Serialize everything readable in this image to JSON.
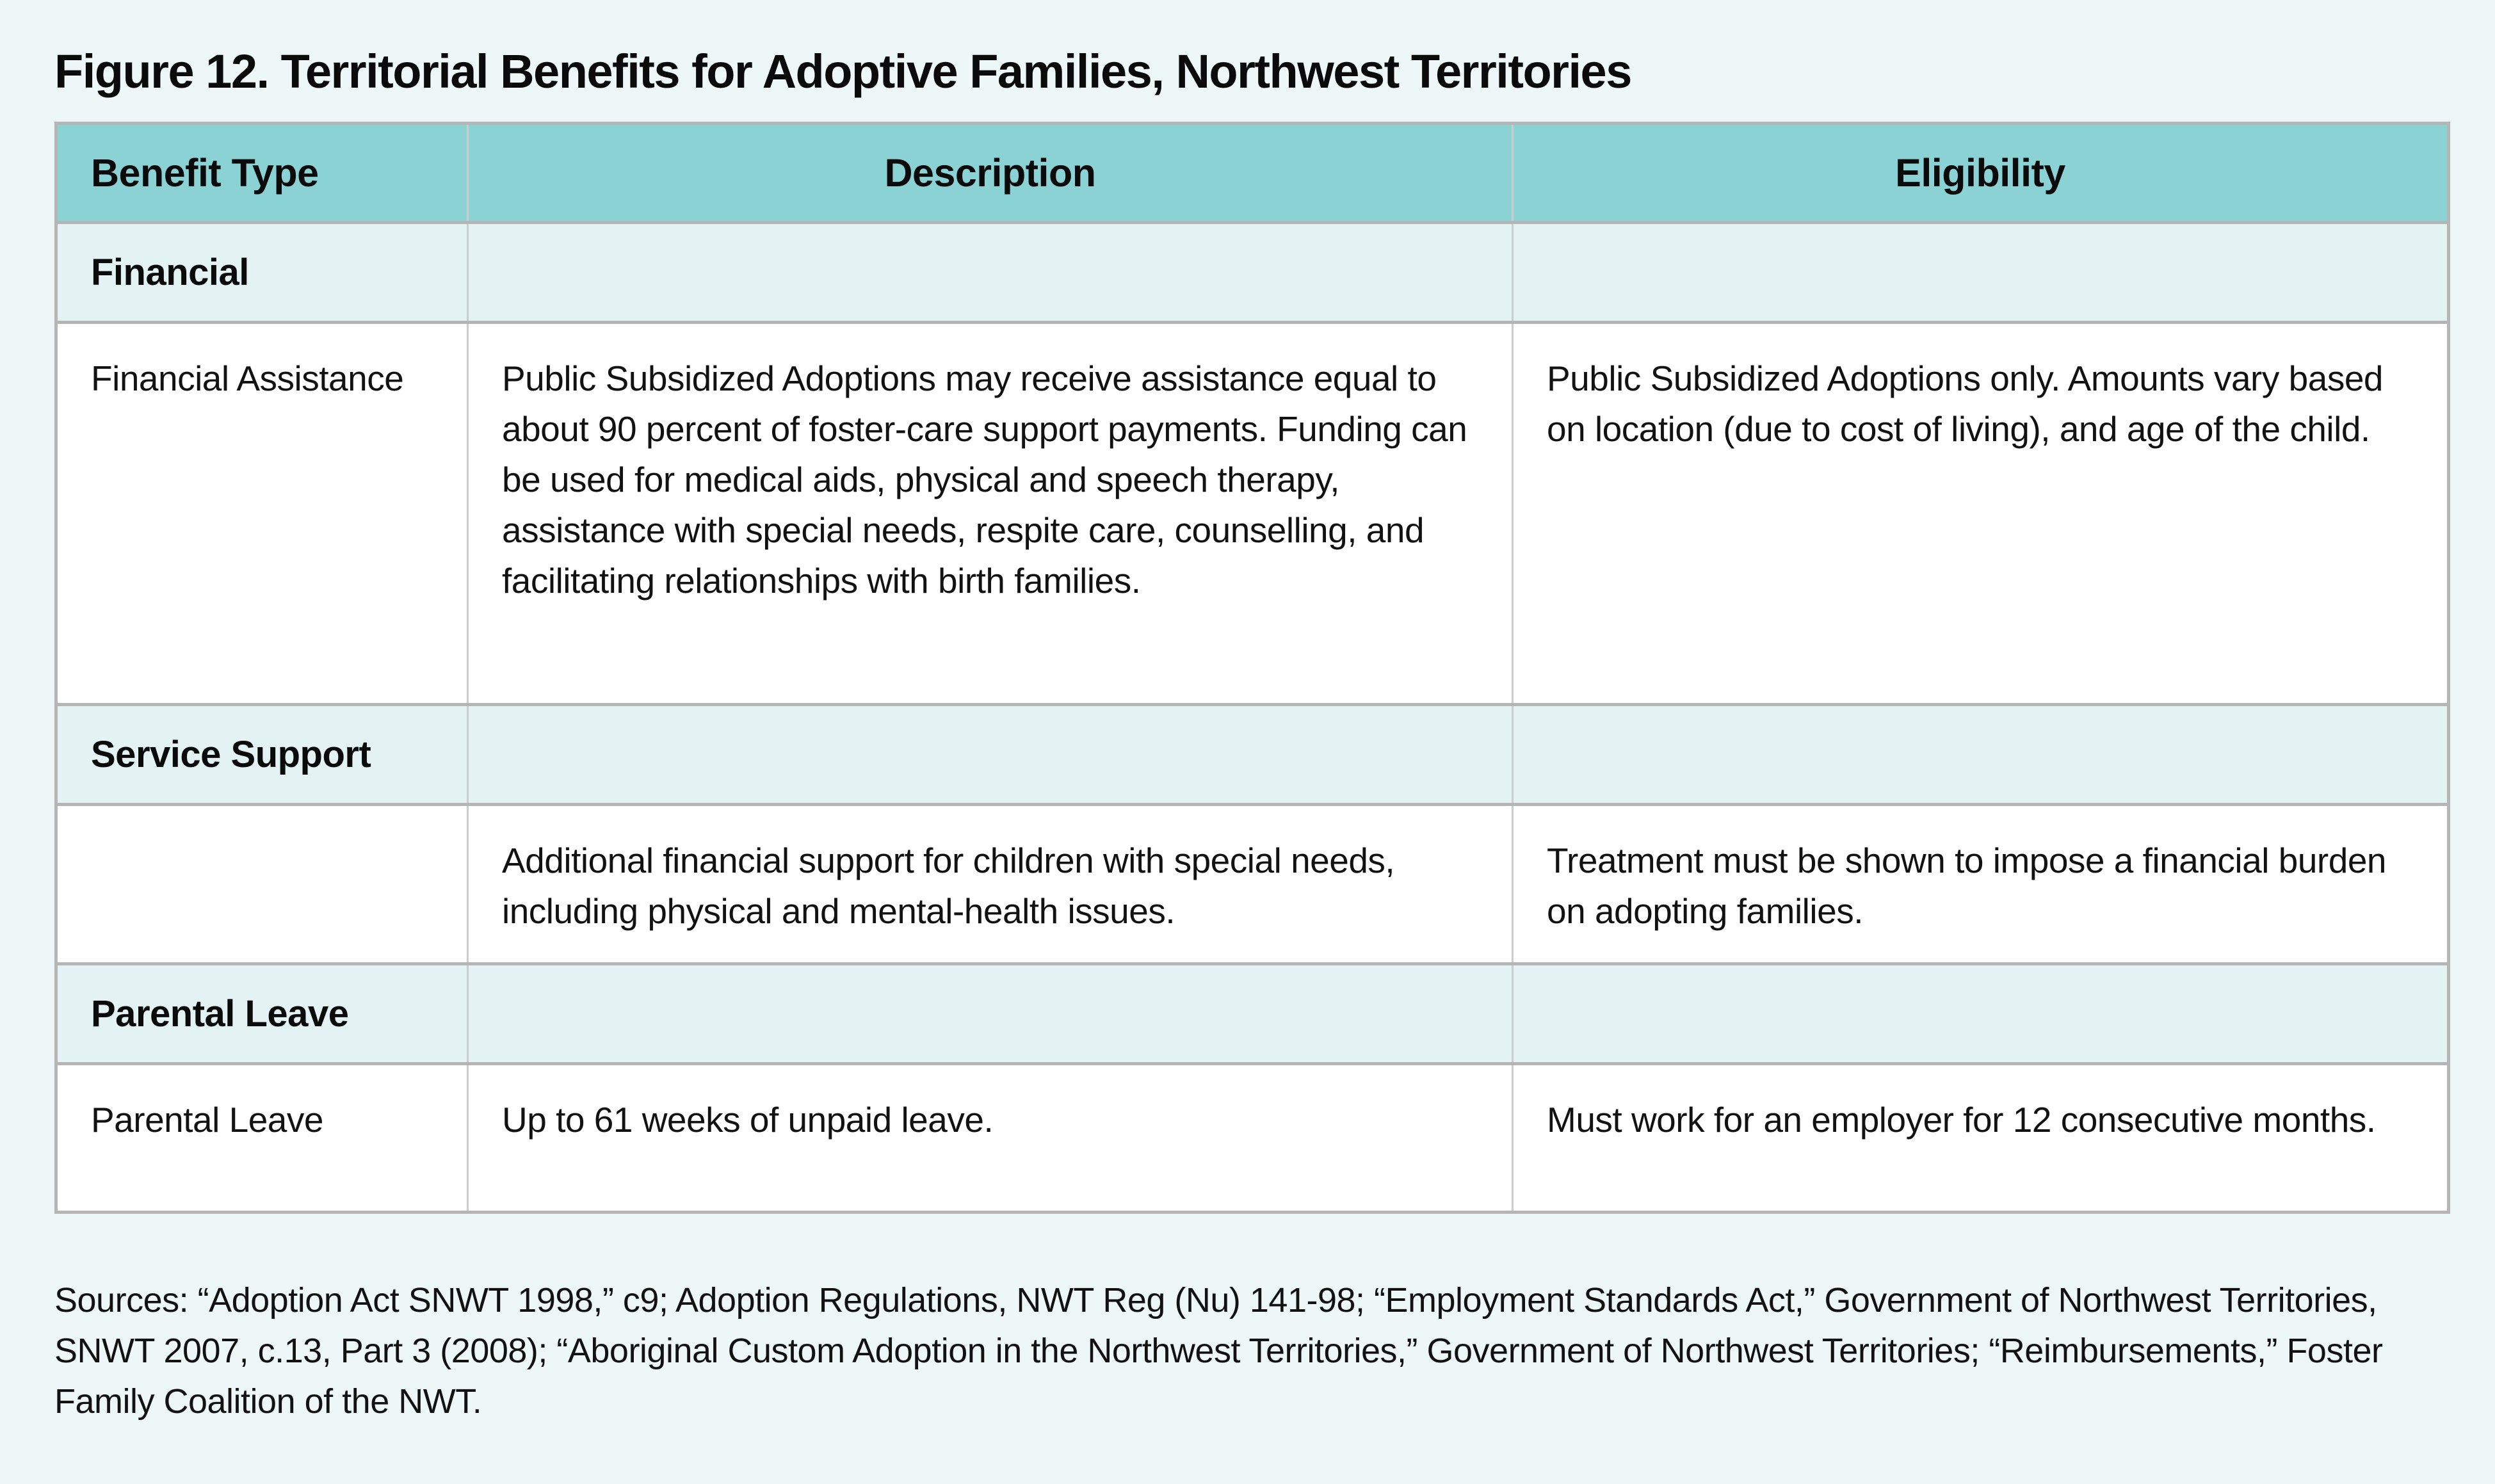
{
  "page": {
    "title": "Figure 12. Territorial Benefits for Adoptive Families, Northwest Territories",
    "sources": "Sources: “Adoption Act SNWT 1998,” c9; Adoption Regulations, NWT Reg (Nu) 141-98; “Employment Standards Act,” Government of Northwest Territories, SNWT 2007, c.13, Part 3 (2008); “Aboriginal Custom Adoption in the Northwest Territories,” Government of Northwest Territories; “Reimbursements,” Foster Family Coalition of the NWT.",
    "colors": {
      "page_background": "#edf7f7",
      "header_background": "#8bd2d5",
      "category_row_background": "#e3f2f3",
      "data_row_background": "#ffffff",
      "border_horizontal": "#b5b5b5",
      "border_vertical": "#c9cdcd",
      "text": "#121212"
    }
  },
  "table": {
    "headers": [
      "Benefit Type",
      "Description",
      "Eligibility"
    ],
    "rows": [
      {
        "type": "category",
        "benefit_type": "Financial",
        "description": "",
        "eligibility": ""
      },
      {
        "type": "data",
        "benefit_type": "Financial Assistance",
        "description": "Public Subsidized Adoptions may receive assistance equal to about 90 percent of foster-care support payments. Funding can be used for medical aids, physical and speech therapy, assistance with special needs, respite care, counselling, and facilitating relationships with birth families.",
        "eligibility": "Public Subsidized Adoptions only. Amounts vary based on location (due to cost of living), and age of the child."
      },
      {
        "type": "category",
        "benefit_type": "Service Support",
        "description": "",
        "eligibility": ""
      },
      {
        "type": "data",
        "benefit_type": "",
        "description": "Additional financial support for children with special needs, including physical and mental-health issues.",
        "eligibility": "Treatment must be shown to impose a financial burden on adopting families."
      },
      {
        "type": "category",
        "benefit_type": "Parental Leave",
        "description": "",
        "eligibility": ""
      },
      {
        "type": "data",
        "benefit_type": "Parental Leave",
        "description": "Up to 61 weeks of unpaid leave.",
        "eligibility": "Must work for an employer for 12 consecutive months."
      }
    ]
  }
}
